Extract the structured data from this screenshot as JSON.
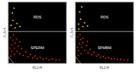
{
  "chart_data": [
    {
      "type": "scatter",
      "x_label": "FL1-H",
      "y_label": "FL3-H",
      "xlim": [
        0,
        1000
      ],
      "ylim": [
        0,
        1000
      ],
      "tick_labels": false,
      "threshold": 520,
      "regions": [
        {
          "label": "RDS"
        },
        {
          "label": "SPERM"
        }
      ],
      "series": [
        {
          "color": "#e0201c",
          "x": [
            40,
            60,
            80,
            100,
            120,
            150,
            170,
            200,
            230,
            260,
            300,
            340,
            380,
            420,
            460,
            500,
            550,
            600,
            650,
            700,
            760,
            820,
            880,
            90,
            140,
            60,
            110,
            200,
            30,
            45
          ],
          "values": [
            420,
            300,
            380,
            250,
            330,
            200,
            280,
            160,
            240,
            130,
            190,
            110,
            150,
            90,
            120,
            80,
            100,
            70,
            85,
            60,
            70,
            55,
            60,
            460,
            400,
            200,
            150,
            350,
            250,
            120
          ]
        },
        {
          "color": "#e8d020",
          "x": [
            50,
            80,
            120,
            70,
            150,
            200,
            100
          ],
          "values": [
            620,
            700,
            580,
            820,
            650,
            600,
            900
          ]
        }
      ]
    },
    {
      "type": "scatter",
      "x_label": "FL1-H",
      "y_label": "FL3-H",
      "xlim": [
        0,
        1000
      ],
      "ylim": [
        0,
        1000
      ],
      "tick_labels": false,
      "threshold": 520,
      "regions": [
        {
          "label": "RDS"
        },
        {
          "label": "SPMBM"
        }
      ],
      "series": [
        {
          "color": "#e0201c",
          "x": [
            40,
            70,
            90,
            110,
            130,
            160,
            190,
            220,
            250,
            280,
            320,
            360,
            400,
            440,
            480,
            520,
            570,
            620,
            670,
            720,
            780,
            840,
            900,
            80,
            130,
            55,
            100,
            210,
            35,
            50
          ],
          "values": [
            430,
            320,
            390,
            260,
            340,
            210,
            290,
            170,
            230,
            140,
            180,
            120,
            140,
            100,
            110,
            85,
            95,
            75,
            80,
            65,
            65,
            55,
            55,
            470,
            410,
            210,
            160,
            360,
            260,
            130
          ]
        },
        {
          "color": "#e8d020",
          "x": [
            55,
            90,
            130,
            75,
            160,
            210,
            110,
            60
          ],
          "values": [
            640,
            720,
            600,
            840,
            660,
            610,
            920,
            560
          ]
        }
      ]
    }
  ]
}
